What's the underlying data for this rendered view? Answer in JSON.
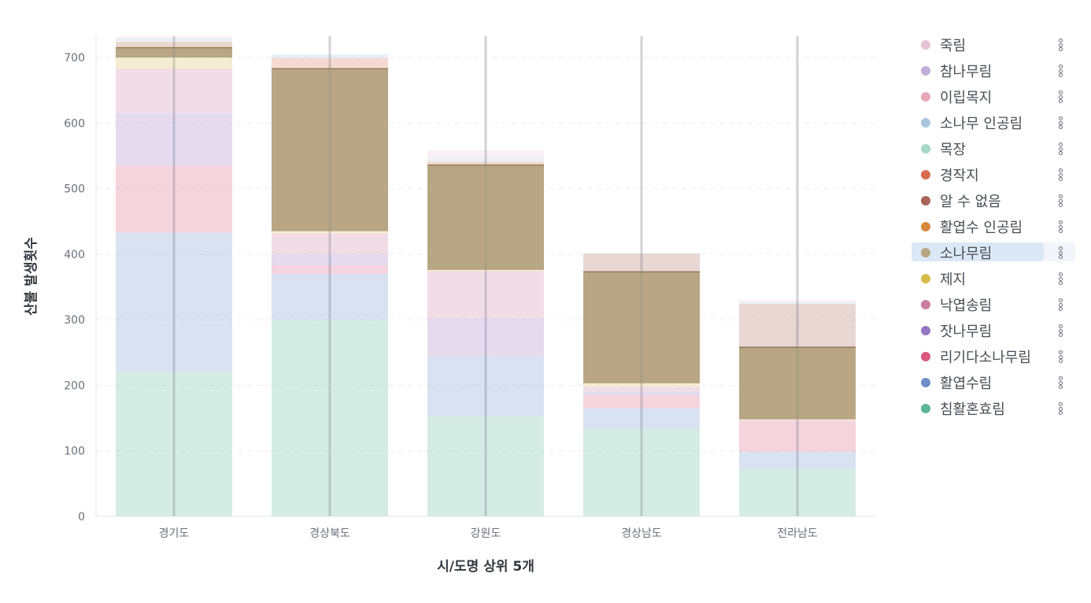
{
  "chart_data": {
    "type": "bar",
    "stacked": true,
    "xlabel": "시/도명 상위 5개",
    "ylabel": "산불 발생횟수",
    "categories": [
      "경기도",
      "경상북도",
      "강원도",
      "경상남도",
      "전라남도"
    ],
    "ylim": [
      0,
      735
    ],
    "yticks": [
      0,
      100,
      200,
      300,
      400,
      500,
      600,
      700
    ],
    "grid": "horizontal-dashed",
    "legend_position": "right",
    "highlighted_series": "소나무림",
    "series": [
      {
        "name": "침활혼효림",
        "color": "#5bb597",
        "values": [
          220,
          300,
          153,
          133,
          72
        ]
      },
      {
        "name": "활엽수림",
        "color": "#6b8fc7",
        "values": [
          213,
          70,
          94,
          32,
          27
        ]
      },
      {
        "name": "리기다소나무림",
        "color": "#d9577f",
        "values": [
          102,
          13,
          2,
          20,
          46
        ]
      },
      {
        "name": "잣나무림",
        "color": "#9575c2",
        "values": [
          80,
          17,
          53,
          5,
          0
        ]
      },
      {
        "name": "낙엽송림",
        "color": "#cb7da3",
        "values": [
          68,
          32,
          72,
          8,
          2
        ]
      },
      {
        "name": "제지",
        "color": "#d7bb4a",
        "values": [
          17,
          3,
          2,
          5,
          1
        ]
      },
      {
        "name": "소나무림",
        "color": "#b8a684",
        "values": [
          15,
          248,
          160,
          170,
          110
        ]
      },
      {
        "name": "활엽수 인공림",
        "color": "#d9893a",
        "values": [
          2,
          2,
          2,
          0,
          0
        ]
      },
      {
        "name": "알 수 없음",
        "color": "#a86555",
        "values": [
          5,
          0,
          0,
          28,
          66
        ]
      },
      {
        "name": "경작지",
        "color": "#d96d50",
        "values": [
          2,
          14,
          3,
          0,
          0
        ]
      },
      {
        "name": "목장",
        "color": "#a7d8c5",
        "values": [
          0,
          0,
          0,
          0,
          0
        ]
      },
      {
        "name": "소나무 인공림",
        "color": "#a9c4de",
        "values": [
          5,
          6,
          5,
          0,
          2
        ]
      },
      {
        "name": "이립목지",
        "color": "#e8a7b7",
        "values": [
          0,
          0,
          0,
          0,
          0
        ]
      },
      {
        "name": "참나무림",
        "color": "#c1afd9",
        "values": [
          0,
          0,
          0,
          0,
          0
        ]
      },
      {
        "name": "죽림",
        "color": "#e4c4d5",
        "values": [
          3,
          0,
          12,
          0,
          4
        ]
      }
    ]
  },
  "legend_order": [
    "죽림",
    "참나무림",
    "이립목지",
    "소나무 인공림",
    "목장",
    "경작지",
    "알 수 없음",
    "활엽수 인공림",
    "소나무림",
    "제지",
    "낙엽송림",
    "잣나무림",
    "리기다소나무림",
    "활엽수림",
    "침활혼효림"
  ]
}
